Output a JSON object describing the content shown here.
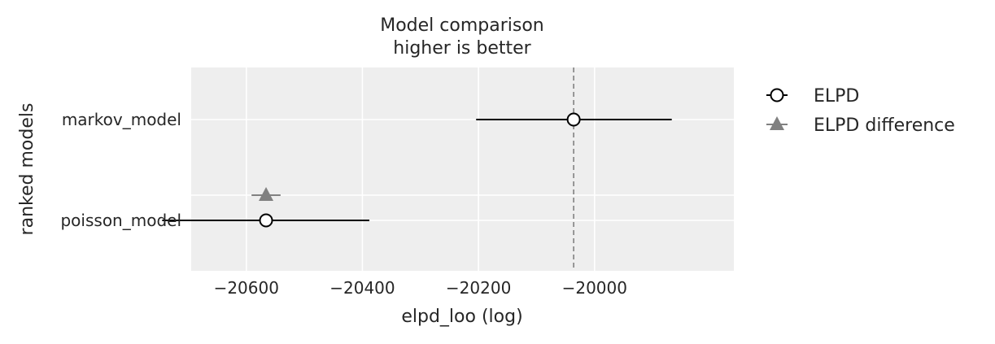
{
  "chart_data": {
    "type": "scatter",
    "title": "Model comparison",
    "subtitle": "higher is better",
    "xlabel": "elpd_loo (log)",
    "ylabel": "ranked models",
    "xlim": [
      -20695,
      -19760
    ],
    "x_ticks": [
      -20600,
      -20400,
      -20200,
      -20000
    ],
    "x_tick_labels": [
      "−20600",
      "−20400",
      "−20200",
      "−20000"
    ],
    "categories": [
      "markov_model",
      "poisson_model"
    ],
    "grid": true,
    "legend_position": "outside-right",
    "reference_line": {
      "value": -20036,
      "style": "dashed"
    },
    "series": [
      {
        "name": "ELPD",
        "marker": "circle",
        "points": [
          {
            "model": "markov_model",
            "x": -20036,
            "lo": -20204,
            "hi": -19867
          },
          {
            "model": "poisson_model",
            "x": -20566,
            "lo": -20745,
            "hi": -20388
          }
        ]
      },
      {
        "name": "ELPD difference",
        "marker": "triangle",
        "points": [
          {
            "model": "poisson_model",
            "x": -20566,
            "lo": -20591,
            "hi": -20541
          }
        ]
      }
    ],
    "colors": {
      "panel_bg": "#eeeeee",
      "grid": "#ffffff",
      "elpd": "#000000",
      "difference": "#808080",
      "reference": "#808080"
    }
  }
}
